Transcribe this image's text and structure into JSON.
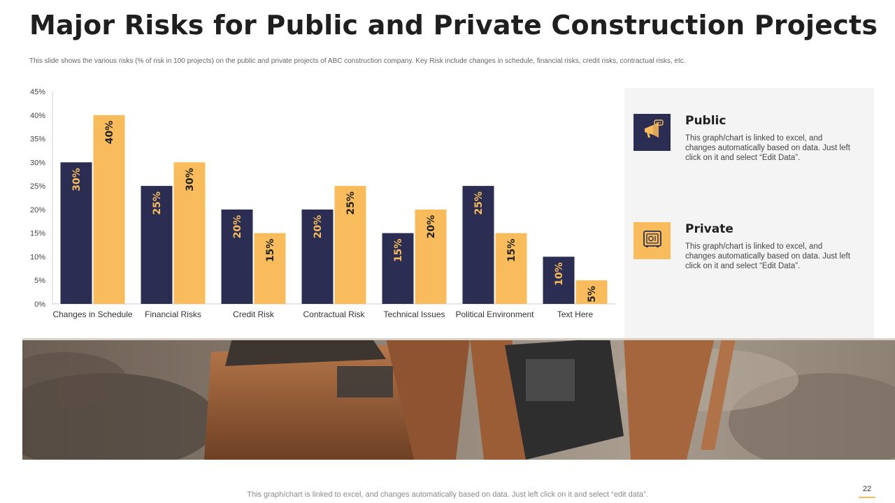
{
  "slide": {
    "title": "Major Risks for Public and Private Construction Projects",
    "subtitle": "This slide shows the various risks (% of risk in 100 projects) on the public and private projects of ABC construction company. Key Risk include changes in schedule, financial risks, credit risks, contractual risks, etc.",
    "footer": "This graph/chart is linked to excel,  and changes automatically based on data. Just left click on it and select “edit data”.",
    "page_number": "22"
  },
  "colors": {
    "public": "#2b2e52",
    "private": "#f9bc5c",
    "panel_bg": "#f4f4f4"
  },
  "legend": [
    {
      "name": "Public",
      "icon": "megaphone-icon",
      "description": "This graph/chart is linked to excel,  and changes automatically based on data. Just left click on it and select “Edit Data”."
    },
    {
      "name": "Private",
      "icon": "safe-icon",
      "description": "This graph/chart is linked to excel,  and changes automatically based on data. Just left click on it and select “Edit Data”."
    }
  ],
  "chart_data": {
    "type": "bar",
    "categories": [
      "Changes in Schedule",
      "Financial Risks",
      "Credit Risk",
      "Contractual Risk",
      "Technical Issues",
      "Political Environment",
      "Text Here"
    ],
    "series": [
      {
        "name": "Public",
        "values": [
          30,
          25,
          20,
          20,
          15,
          25,
          10
        ],
        "labels": [
          "30%",
          "25%",
          "20%",
          "20%",
          "15%",
          "25%",
          "10%"
        ]
      },
      {
        "name": "Private",
        "values": [
          40,
          30,
          15,
          25,
          20,
          15,
          5
        ],
        "labels": [
          "40%",
          "30%",
          "15%",
          "25%",
          "20%",
          "15%",
          "5%"
        ]
      }
    ],
    "y_ticks": [
      "0%",
      "5%",
      "10%",
      "15%",
      "20%",
      "25%",
      "30%",
      "35%",
      "40%",
      "45%"
    ],
    "ylim": [
      0,
      45
    ],
    "y_step": 5,
    "grid": false,
    "legend_position": "right"
  }
}
